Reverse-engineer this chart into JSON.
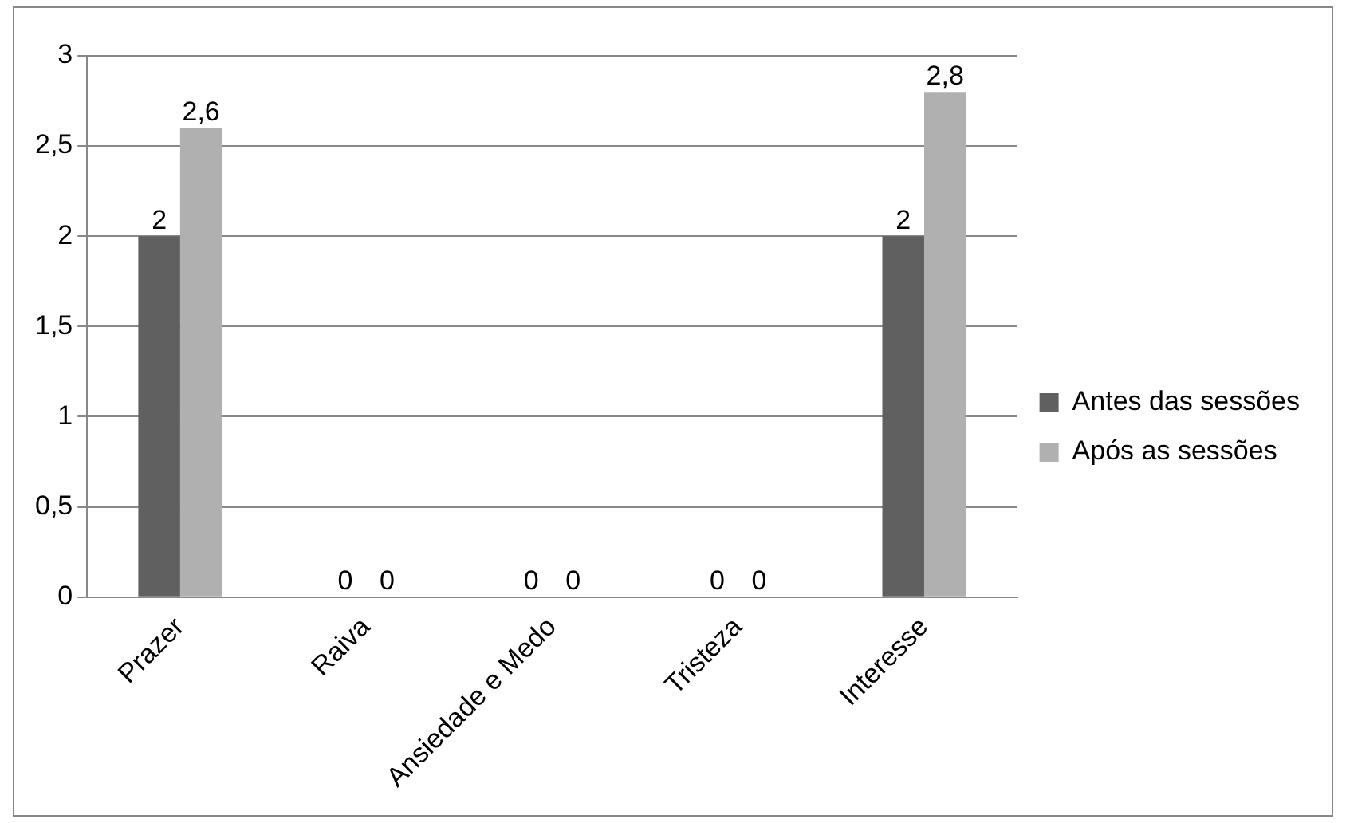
{
  "chart_data": {
    "type": "bar",
    "categories": [
      "Prazer",
      "Raiva",
      "Ansiedade e Medo",
      "Tristeza",
      "Interesse"
    ],
    "series": [
      {
        "name": "Antes das sessões",
        "color": "#606060",
        "values": [
          2,
          0,
          0,
          0,
          2
        ],
        "value_labels": [
          "2",
          "0",
          "0",
          "0",
          "2"
        ]
      },
      {
        "name": "Após as sessões",
        "color": "#b0b0b0",
        "values": [
          2.6,
          0,
          0,
          0,
          2.8
        ],
        "value_labels": [
          "2,6",
          "0",
          "0",
          "0",
          "2,8"
        ]
      }
    ],
    "ylim": [
      0,
      3
    ],
    "yticks": [
      0,
      {
        "value": 0.5,
        "label": "0,5"
      },
      1,
      {
        "value": 1.5,
        "label": "1,5"
      },
      2,
      {
        "value": 2.5,
        "label": "2,5"
      },
      3
    ],
    "grid": "y",
    "legend": "right"
  }
}
